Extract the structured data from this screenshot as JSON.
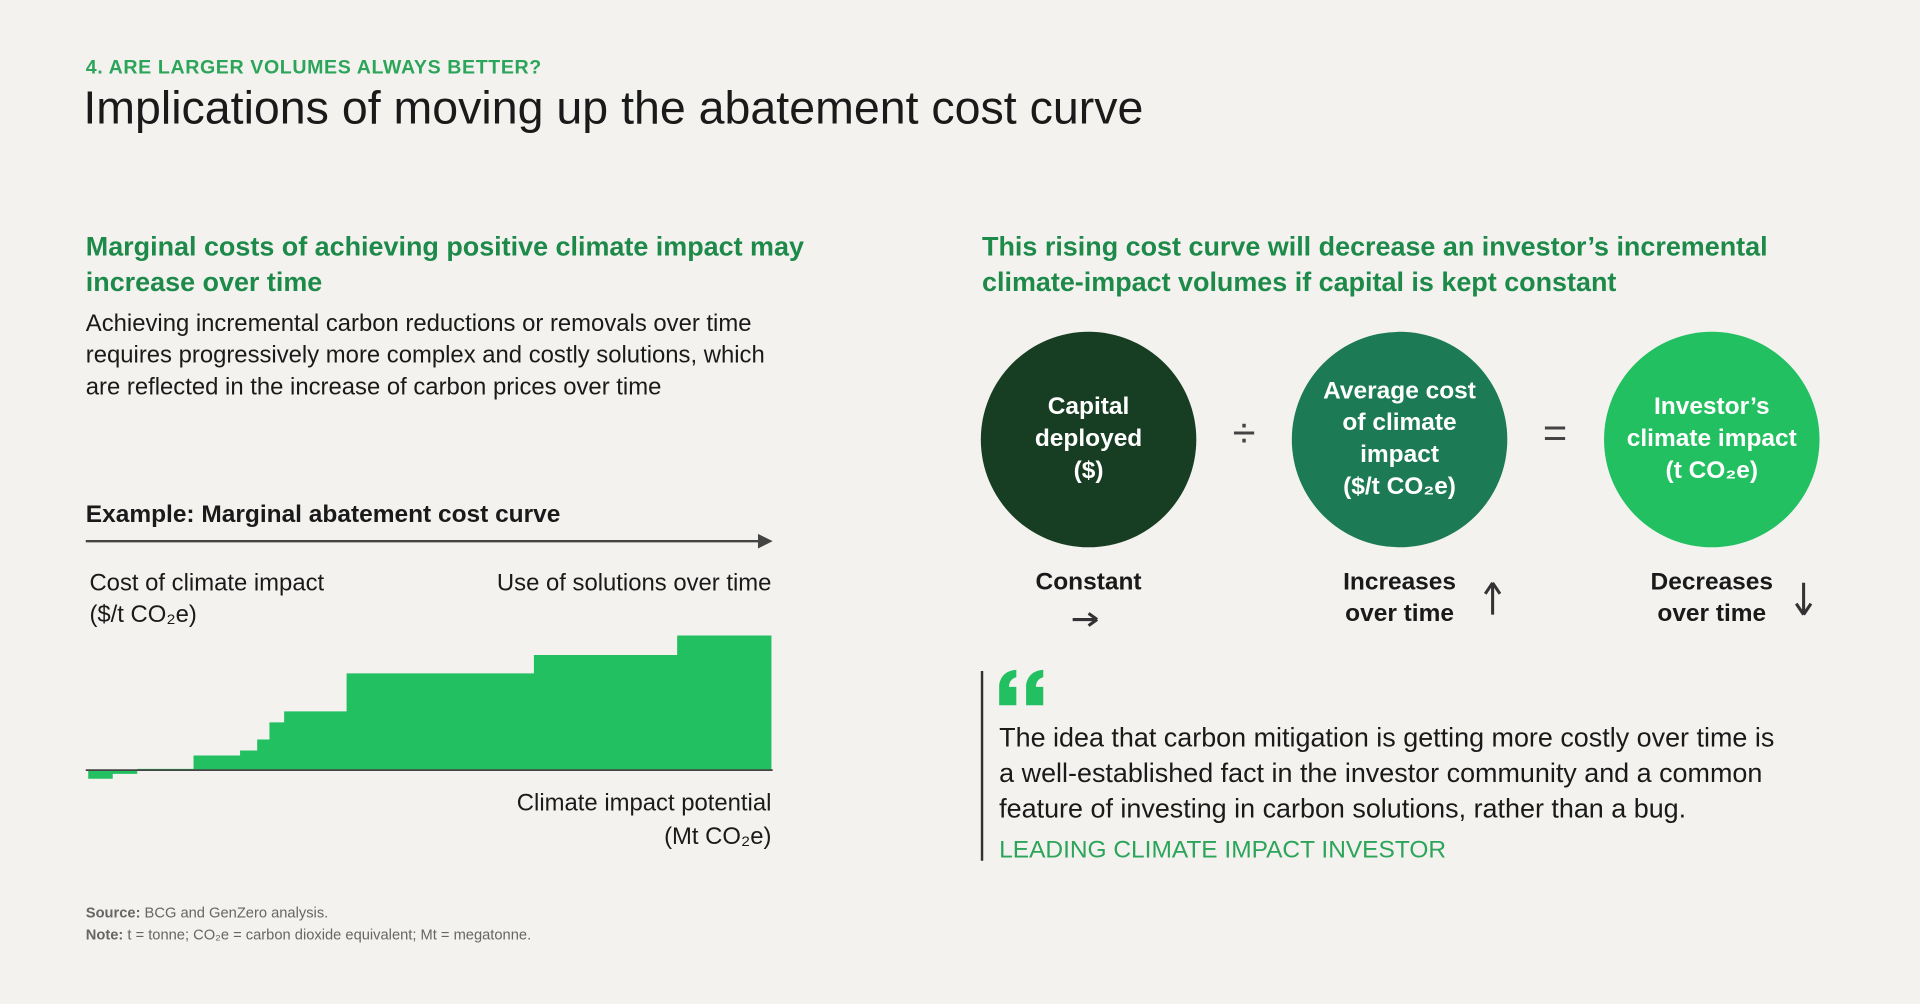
{
  "header": {
    "kicker": "4. ARE LARGER VOLUMES ALWAYS BETTER?",
    "title": "Implications of moving up the abatement cost curve"
  },
  "left": {
    "heading": [
      "Marginal costs of achieving positive climate impact may",
      "increase over time"
    ],
    "body": [
      "Achieving incremental carbon reductions or removals over time",
      "requires progressively more complex and costly solutions, which",
      "are reflected in the increase of carbon prices over time"
    ],
    "example_title": "Example: Marginal abatement cost curve",
    "y_label": [
      "Cost of climate impact",
      "($/t CO₂e)"
    ],
    "time_label": "Use of solutions over time",
    "x_label": [
      "Climate impact potential",
      "(Mt CO₂e)"
    ]
  },
  "right": {
    "heading": [
      "This rising cost curve will decrease an investor’s incremental",
      "climate-impact volumes if capital is kept constant"
    ],
    "circles": [
      {
        "label": [
          "Capital",
          "deployed",
          "($)"
        ],
        "trend": [
          "Constant"
        ]
      },
      {
        "label": [
          "Average cost",
          "of climate",
          "impact",
          "($/t CO₂e)"
        ],
        "trend": [
          "Increases",
          "over time"
        ]
      },
      {
        "label": [
          "Investor’s",
          "climate impact",
          "(t CO₂e)"
        ],
        "trend": [
          "Decreases",
          "over time"
        ]
      }
    ],
    "operators": [
      "÷",
      "="
    ],
    "quote": [
      "The idea that carbon mitigation is getting more costly over time is",
      "a well-established fact in the investor community and a common",
      "feature of investing in carbon solutions, rather than a bug."
    ],
    "attribution": "LEADING CLIMATE IMPACT INVESTOR"
  },
  "footer": {
    "source_label": "Source:",
    "source": "BCG and GenZero analysis.",
    "note_label": "Note:",
    "note": "t = tonne; CO₂e = carbon dioxide equivalent; Mt = megatonne."
  }
}
